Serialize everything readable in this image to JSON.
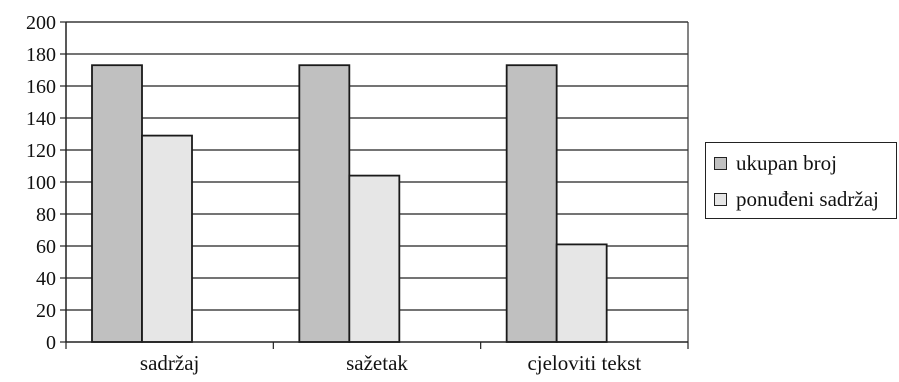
{
  "chart_data": {
    "type": "bar",
    "categories": [
      "sadržaj",
      "sažetak",
      "cjeloviti tekst"
    ],
    "series": [
      {
        "name": "ukupan broj",
        "values": [
          173,
          173,
          173
        ],
        "color": "#c0c0c0"
      },
      {
        "name": "ponuđeni sadržaj",
        "values": [
          129,
          104,
          61
        ],
        "color": "#e6e6e6"
      }
    ],
    "title": "",
    "xlabel": "",
    "ylabel": "",
    "ylim": [
      0,
      200
    ],
    "yticks": [
      "0",
      "20",
      "40",
      "60",
      "80",
      "100",
      "120",
      "140",
      "160",
      "180",
      "200"
    ],
    "grid": true,
    "legend_position": "right"
  }
}
